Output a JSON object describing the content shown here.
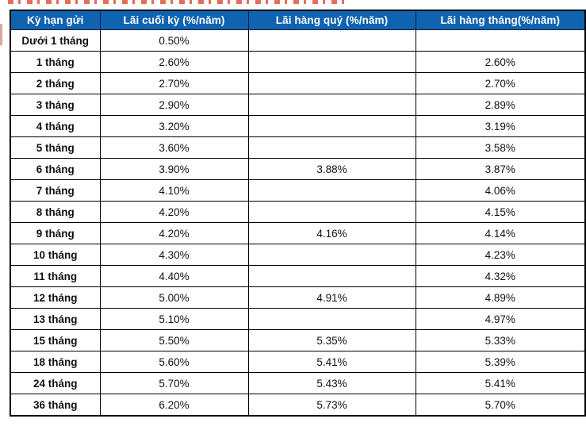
{
  "chart_data": {
    "type": "table",
    "columns": [
      "Kỳ hạn gửi",
      "Lãi cuối kỳ (%/năm)",
      "Lãi hàng quý (%/năm)",
      "Lãi hàng tháng(%/năm)"
    ],
    "rows": [
      [
        "Dưới 1 tháng",
        "0.50%",
        "",
        ""
      ],
      [
        "1 tháng",
        "2.60%",
        "",
        "2.60%"
      ],
      [
        "2 tháng",
        "2.70%",
        "",
        "2.70%"
      ],
      [
        "3 tháng",
        "2.90%",
        "",
        "2.89%"
      ],
      [
        "4 tháng",
        "3.20%",
        "",
        "3.19%"
      ],
      [
        "5 tháng",
        "3.60%",
        "",
        "3.58%"
      ],
      [
        "6 tháng",
        "3.90%",
        "3.88%",
        "3.87%"
      ],
      [
        "7 tháng",
        "4.10%",
        "",
        "4.06%"
      ],
      [
        "8 tháng",
        "4.20%",
        "",
        "4.15%"
      ],
      [
        "9 tháng",
        "4.20%",
        "4.16%",
        "4.14%"
      ],
      [
        "10 tháng",
        "4.30%",
        "",
        "4.23%"
      ],
      [
        "11 tháng",
        "4.40%",
        "",
        "4.32%"
      ],
      [
        "12 tháng",
        "5.00%",
        "4.91%",
        "4.89%"
      ],
      [
        "13 tháng",
        "5.10%",
        "",
        "4.97%"
      ],
      [
        "15 tháng",
        "5.50%",
        "5.35%",
        "5.33%"
      ],
      [
        "18 tháng",
        "5.60%",
        "5.41%",
        "5.39%"
      ],
      [
        "24 tháng",
        "5.70%",
        "5.43%",
        "5.41%"
      ],
      [
        "36 tháng",
        "6.20%",
        "5.73%",
        "5.70%"
      ]
    ]
  },
  "colors": {
    "header_bg": "#0f63b0",
    "header_text": "#ffffff",
    "header_border": "#0b2240",
    "cell_border": "#000000",
    "body_text": "#111111",
    "fragment_red": "#e0543d",
    "fragment_pink": "#d9a79b"
  }
}
